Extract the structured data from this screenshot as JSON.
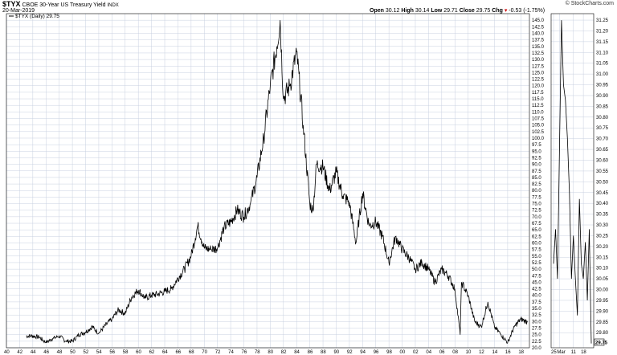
{
  "header": {
    "symbol": "$TYX",
    "description": "CBOE 30-Year US Treasury Yield",
    "exchange": "INDX",
    "date": "20-Mar-2019",
    "brand": "© StockCharts.com",
    "open_label": "Open",
    "open": "30.12",
    "high_label": "High",
    "high": "30.14",
    "low_label": "Low",
    "low": "29.71",
    "close_label": "Close",
    "close": "29.75",
    "chg_label": "Chg",
    "chg": "-0.53 (-1.75%)",
    "chg_marker": "▾"
  },
  "legend": {
    "label": "$TYX (Daily) 29.75"
  },
  "colors": {
    "grid": "#c8d0e0",
    "plot_bg": "#ffffff",
    "line": "#000000",
    "last_value_box": "#ffffff"
  },
  "chart_data": [
    {
      "type": "line",
      "name": "main-daily",
      "series": [
        {
          "name": "$TYX (Daily) 29.75"
        }
      ],
      "x": [
        1943,
        1944,
        1945,
        1946,
        1947,
        1948,
        1949,
        1950,
        1951,
        1952,
        1953,
        1954,
        1955,
        1956,
        1957,
        1958,
        1959,
        1960,
        1961,
        1962,
        1963,
        1964,
        1965,
        1966,
        1967,
        1968,
        1969,
        1970,
        1971,
        1972,
        1973,
        1974,
        1975,
        1976,
        1977,
        1978,
        1979,
        1980,
        1981,
        1981.5,
        1982,
        1983,
        1984,
        1985,
        1986,
        1986.5,
        1987,
        1988,
        1989,
        1990,
        1991,
        1992,
        1993,
        1994,
        1995,
        1996,
        1997,
        1998,
        1999,
        2000,
        2001,
        2002,
        2003,
        2004,
        2005,
        2006,
        2007,
        2008,
        2008.8,
        2009,
        2010,
        2011,
        2012,
        2013,
        2014,
        2015,
        2016,
        2017,
        2018,
        2019
      ],
      "values": [
        24.5,
        24.5,
        24.0,
        22.0,
        23.5,
        24.5,
        22.5,
        22.5,
        25.0,
        26.0,
        28.0,
        25.5,
        28.5,
        31.0,
        34.5,
        33.0,
        39.5,
        42.0,
        39.0,
        40.0,
        40.5,
        41.5,
        42.5,
        46.5,
        50.0,
        55.0,
        66.5,
        58.0,
        57.5,
        58.0,
        66.0,
        68.0,
        72.5,
        70.0,
        75.0,
        85.0,
        100.0,
        120.0,
        135.0,
        145.0,
        115.0,
        120.0,
        133.0,
        105.0,
        75.0,
        72.0,
        90.0,
        89.0,
        80.0,
        87.0,
        78.0,
        75.5,
        60.0,
        79.0,
        66.5,
        68.0,
        62.5,
        52.5,
        62.5,
        57.5,
        54.5,
        50.0,
        52.5,
        50.0,
        45.0,
        50.0,
        47.5,
        42.5,
        25.0,
        45.0,
        40.0,
        30.0,
        28.0,
        37.5,
        28.0,
        25.0,
        22.0,
        28.0,
        31.0,
        29.75
      ],
      "x_tick_labels": [
        "40",
        "42",
        "44",
        "46",
        "48",
        "50",
        "52",
        "54",
        "56",
        "58",
        "60",
        "62",
        "64",
        "66",
        "68",
        "70",
        "72",
        "74",
        "76",
        "78",
        "80",
        "82",
        "84",
        "86",
        "88",
        "90",
        "92",
        "94",
        "96",
        "98",
        "00",
        "02",
        "04",
        "06",
        "08",
        "10",
        "12",
        "14",
        "16",
        "18"
      ],
      "y_tick_labels": [
        "145.0",
        "142.5",
        "140.0",
        "137.5",
        "135.0",
        "132.5",
        "130.0",
        "127.5",
        "125.0",
        "122.5",
        "120.0",
        "117.5",
        "115.0",
        "112.5",
        "110.0",
        "107.5",
        "105.0",
        "102.5",
        "100.0",
        "97.5",
        "95.0",
        "92.5",
        "90.0",
        "87.5",
        "85.0",
        "82.5",
        "80.0",
        "77.5",
        "75.0",
        "72.5",
        "70.0",
        "67.5",
        "65.0",
        "62.5",
        "60.0",
        "57.5",
        "55.0",
        "52.5",
        "50.0",
        "47.5",
        "45.0",
        "42.5",
        "40.0",
        "37.5",
        "35.0",
        "32.5",
        "30.0",
        "27.5",
        "25.0",
        "22.5",
        "20.0"
      ],
      "xlim": [
        1940,
        2019.3
      ],
      "ylim": [
        20.0,
        147.5
      ],
      "grid": true,
      "legend": "top-left"
    },
    {
      "type": "line",
      "name": "inset-recent",
      "series": [
        {
          "name": "$TYX"
        }
      ],
      "x": [
        1,
        2,
        3,
        4,
        5,
        6,
        7,
        8,
        9,
        10,
        11,
        12,
        13,
        14,
        15,
        16,
        17,
        18,
        19,
        20
      ],
      "values": [
        30.12,
        30.28,
        30.05,
        30.65,
        31.25,
        30.95,
        30.88,
        30.7,
        30.45,
        30.05,
        30.25,
        30.05,
        29.88,
        30.42,
        30.12,
        30.05,
        30.22,
        29.95,
        30.28,
        29.75
      ],
      "x_tick_labels": [
        "25",
        "Mar",
        "11",
        "18"
      ],
      "y_tick_labels": [
        "31.25",
        "31.20",
        "31.15",
        "31.10",
        "31.05",
        "31.00",
        "30.95",
        "30.90",
        "30.85",
        "30.80",
        "30.75",
        "30.70",
        "30.65",
        "30.60",
        "30.55",
        "30.50",
        "30.45",
        "30.40",
        "30.35",
        "30.30",
        "30.25",
        "30.20",
        "30.15",
        "30.10",
        "30.05",
        "30.00",
        "29.95",
        "29.90",
        "29.85",
        "29.80"
      ],
      "last_value": "29.75",
      "ylim": [
        29.73,
        31.28
      ],
      "grid": false
    }
  ]
}
